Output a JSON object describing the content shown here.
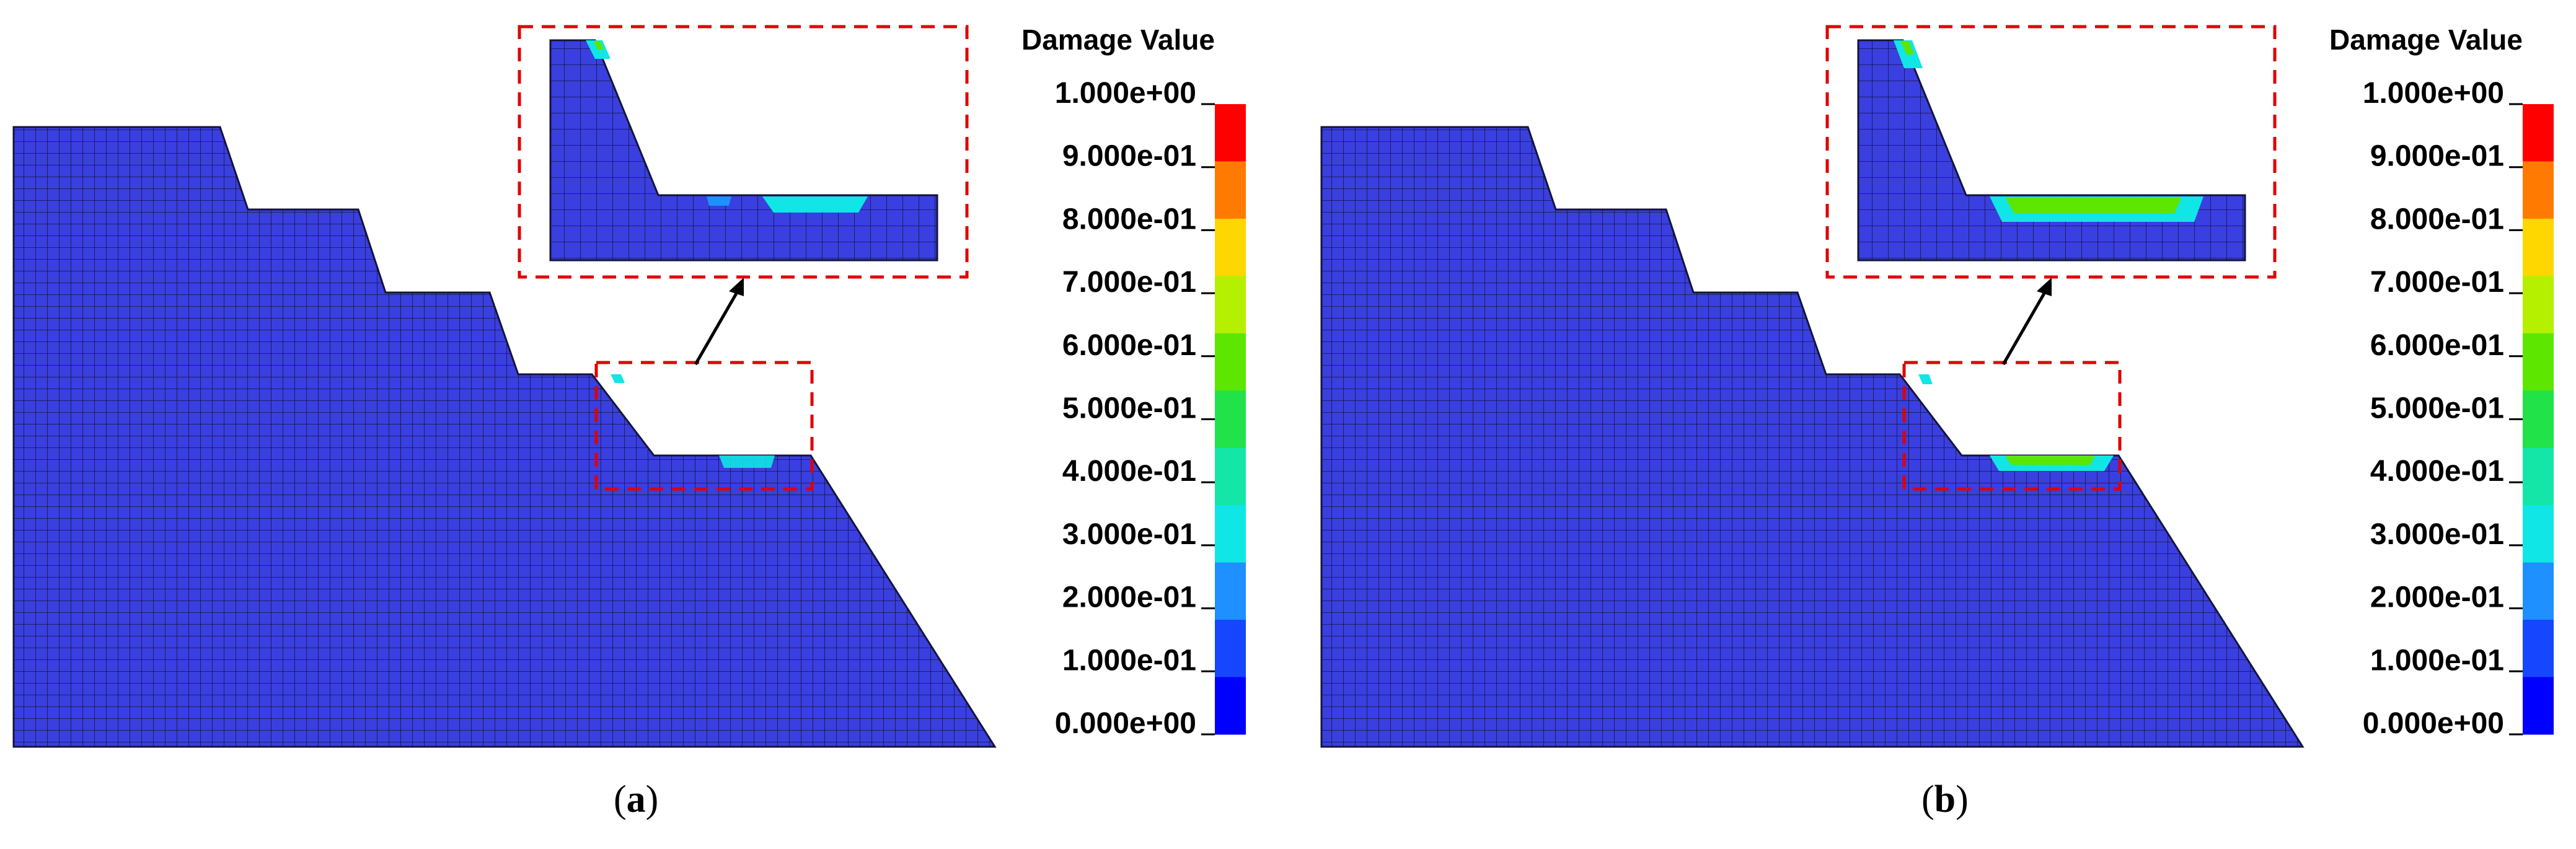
{
  "legend": {
    "title": "Damage Value",
    "labels": [
      "1.000e+00",
      "9.000e-01",
      "8.000e-01",
      "7.000e-01",
      "6.000e-01",
      "5.000e-01",
      "4.000e-01",
      "3.000e-01",
      "2.000e-01",
      "1.000e-01",
      "0.000e+00"
    ],
    "colors_top_to_bottom": [
      "#ff0000",
      "#ff7a00",
      "#ffd700",
      "#b4f000",
      "#5ce600",
      "#22e24a",
      "#14e6a8",
      "#10e6e6",
      "#1e90ff",
      "#1746ff",
      "#0000ff"
    ]
  },
  "mesh": {
    "fill_color": "#3a3fe0",
    "grid_color": "#14143a"
  },
  "callout": {
    "box_color": "#e00000",
    "arrow_color": "#000000"
  },
  "panels": [
    {
      "id": "a",
      "caption_prefix": "(",
      "caption_letter": "a",
      "caption_suffix": ")",
      "damage_level": 0.25
    },
    {
      "id": "b",
      "caption_prefix": "(",
      "caption_letter": "b",
      "caption_suffix": ")",
      "damage_level": 0.6
    }
  ]
}
